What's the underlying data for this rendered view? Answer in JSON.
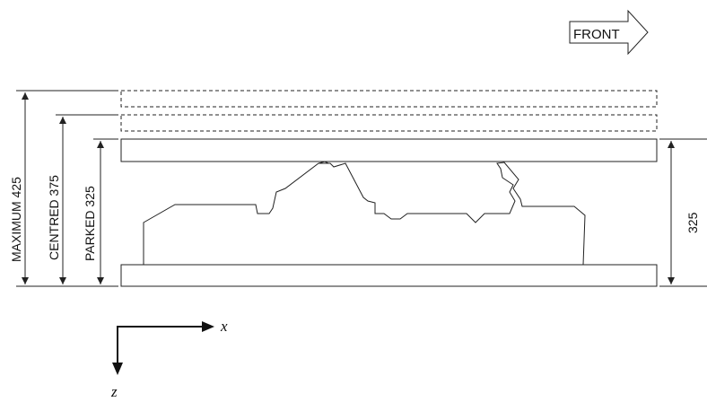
{
  "front_label": "FRONT",
  "dimensions": {
    "maximum": "MAXIMUM 425",
    "centred": "CENTRED 375",
    "parked": "PARKED 325",
    "right": "325"
  },
  "axes": {
    "x": "x",
    "z": "z"
  }
}
